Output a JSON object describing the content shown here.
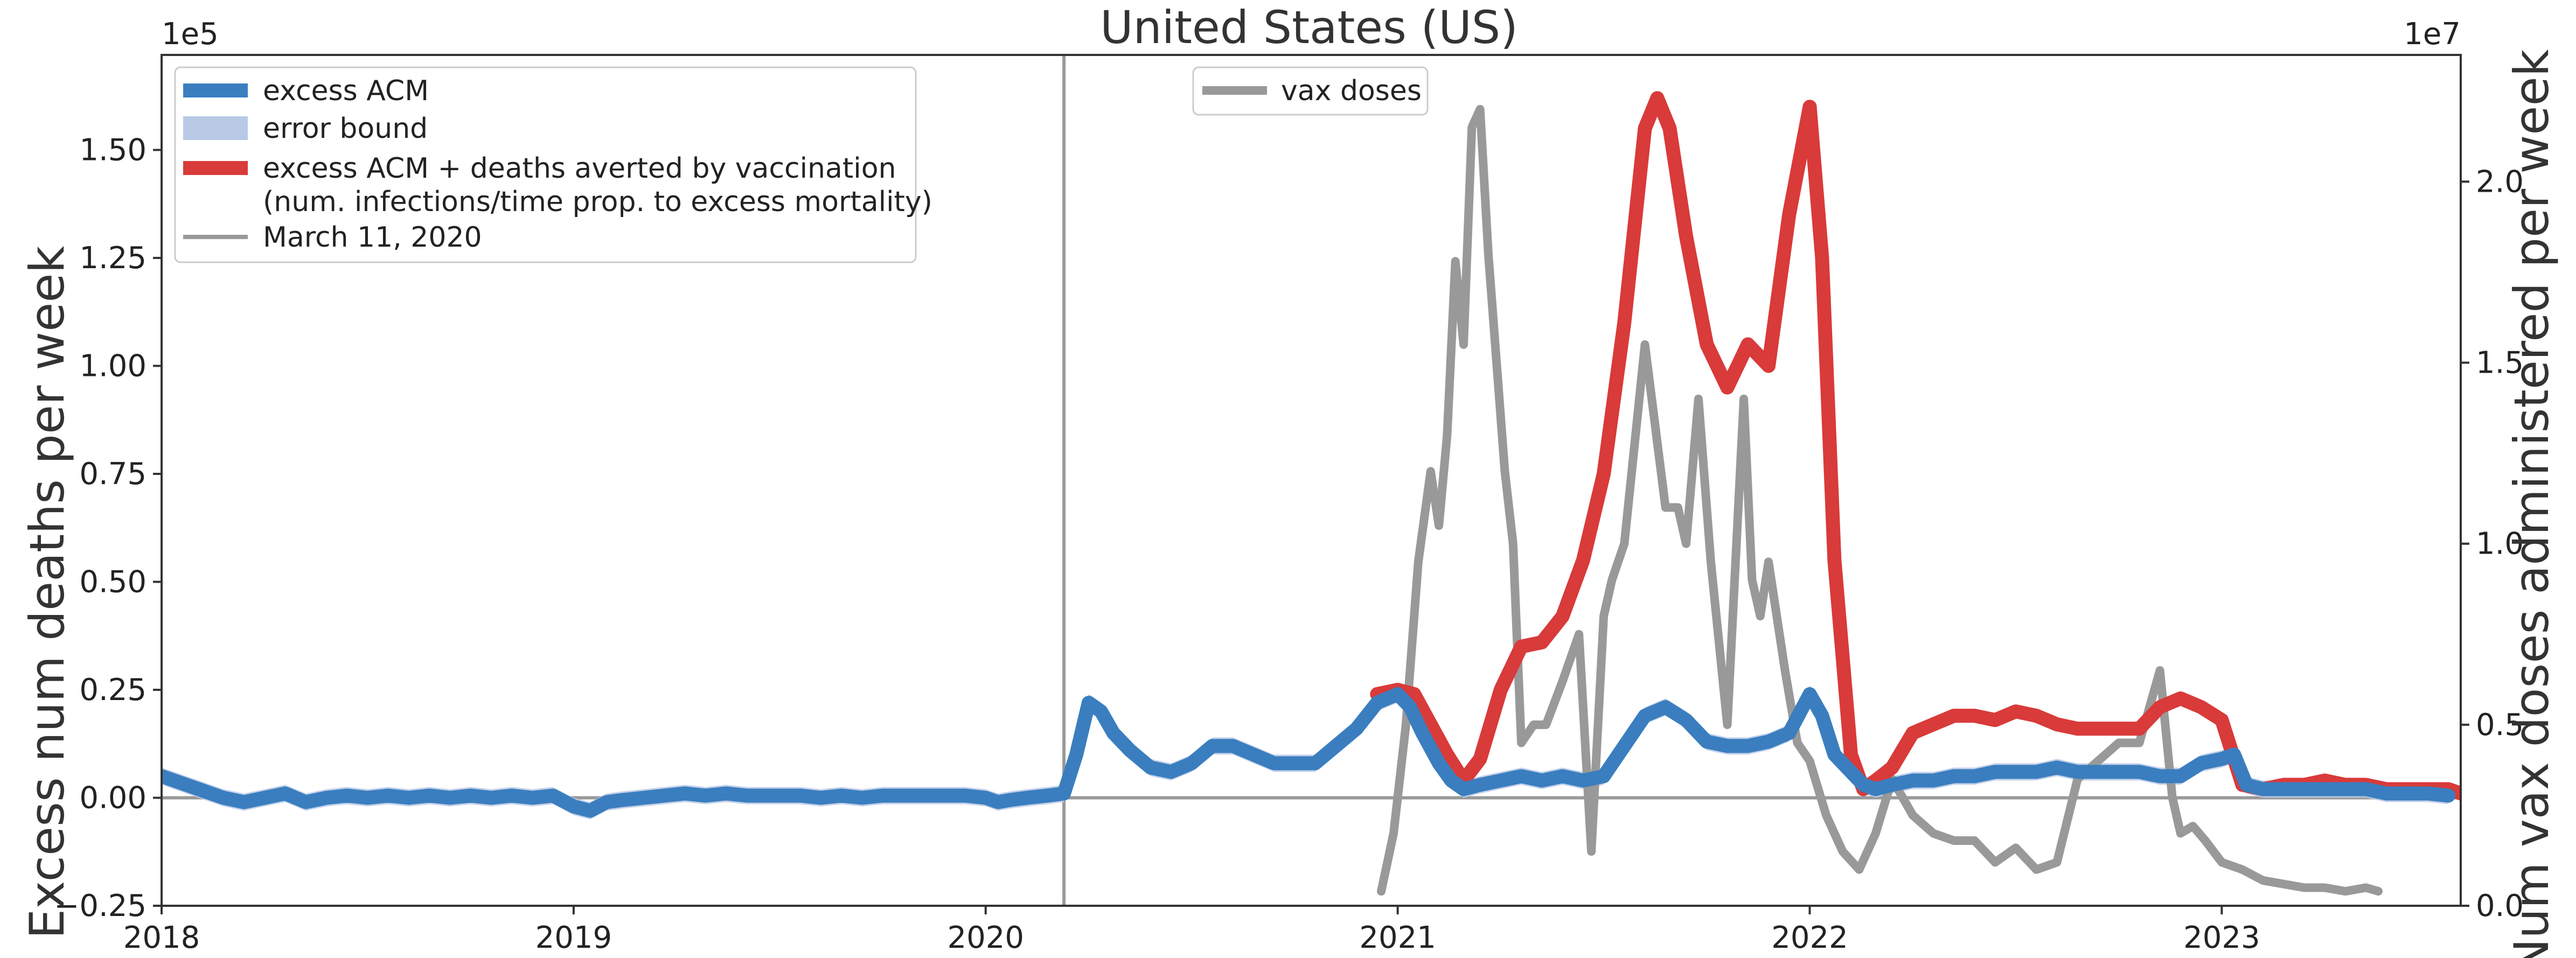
{
  "chart_data": {
    "type": "line",
    "title": "United States (US)",
    "ylabel": "Excess num deaths per week",
    "ylabel_right": "Num vax doses administered per week",
    "y_offset_left": "1e5",
    "y_offset_right": "1e7",
    "xlim": [
      2018.0,
      2023.58
    ],
    "ylim": [
      -0.25,
      1.72
    ],
    "ylim_right": [
      0.0,
      2.35
    ],
    "x_ticks": [
      2018,
      2019,
      2020,
      2021,
      2022,
      2023
    ],
    "x_tick_labels": [
      "2018",
      "2019",
      "2020",
      "2021",
      "2022",
      "2023"
    ],
    "y_ticks": [
      -0.25,
      0.0,
      0.25,
      0.5,
      0.75,
      1.0,
      1.25,
      1.5
    ],
    "y_tick_labels": [
      "−0.25",
      "0.00",
      "0.25",
      "0.50",
      "0.75",
      "1.00",
      "1.25",
      "1.50"
    ],
    "y_ticks_right": [
      0.0,
      0.5,
      1.0,
      1.5,
      2.0
    ],
    "y_tick_labels_right": [
      "0.0",
      "0.5",
      "1.0",
      "1.5",
      "2.0"
    ],
    "grid": false,
    "vline_x": 2020.19,
    "hline_y": 0.0,
    "legend": {
      "placement": "top-left",
      "entries": [
        {
          "label": "excess ACM",
          "color": "#3a7ebf",
          "kind": "line"
        },
        {
          "label": "error bound",
          "color": "#b8c9e6",
          "kind": "patch"
        },
        {
          "label": "excess ACM + deaths averted by vaccination",
          "label2": "(num. infections/time prop. to excess mortality)",
          "color": "#d93a3a",
          "kind": "line"
        },
        {
          "label": "March 11, 2020",
          "color": "#999999",
          "kind": "thin"
        }
      ]
    },
    "legend2": {
      "placement": "top-center",
      "entries": [
        {
          "label": "vax doses",
          "color": "#999999",
          "kind": "line"
        }
      ]
    },
    "series": [
      {
        "name": "excess ACM",
        "color": "#3a7ebf",
        "x": [
          2018.0,
          2018.03,
          2018.06,
          2018.09,
          2018.12,
          2018.15,
          2018.2,
          2018.25,
          2018.3,
          2018.35,
          2018.4,
          2018.45,
          2018.5,
          2018.55,
          2018.6,
          2018.65,
          2018.7,
          2018.75,
          2018.8,
          2018.85,
          2018.9,
          2018.95,
          2019.0,
          2019.04,
          2019.08,
          2019.12,
          2019.17,
          2019.22,
          2019.27,
          2019.32,
          2019.37,
          2019.42,
          2019.5,
          2019.55,
          2019.6,
          2019.65,
          2019.7,
          2019.75,
          2019.8,
          2019.85,
          2019.9,
          2019.95,
          2020.0,
          2020.03,
          2020.06,
          2020.1,
          2020.15,
          2020.19,
          2020.22,
          2020.25,
          2020.28,
          2020.31,
          2020.35,
          2020.4,
          2020.45,
          2020.5,
          2020.55,
          2020.6,
          2020.65,
          2020.7,
          2020.75,
          2020.8,
          2020.85,
          2020.9,
          2020.95,
          2021.0,
          2021.03,
          2021.06,
          2021.1,
          2021.13,
          2021.16,
          2021.2,
          2021.25,
          2021.3,
          2021.35,
          2021.4,
          2021.45,
          2021.5,
          2021.55,
          2021.6,
          2021.65,
          2021.7,
          2021.75,
          2021.8,
          2021.85,
          2021.9,
          2021.95,
          2022.0,
          2022.03,
          2022.06,
          2022.1,
          2022.13,
          2022.16,
          2022.2,
          2022.25,
          2022.3,
          2022.35,
          2022.4,
          2022.45,
          2022.5,
          2022.55,
          2022.6,
          2022.65,
          2022.7,
          2022.75,
          2022.8,
          2022.85,
          2022.9,
          2022.95,
          2023.0,
          2023.03,
          2023.06,
          2023.1,
          2023.15,
          2023.2,
          2023.25,
          2023.3,
          2023.35,
          2023.4,
          2023.45,
          2023.5,
          2023.55
        ],
        "values": [
          0.05,
          0.04,
          0.03,
          0.02,
          0.01,
          0.0,
          -0.01,
          0.0,
          0.01,
          -0.01,
          0.0,
          0.005,
          0.0,
          0.005,
          0.0,
          0.005,
          0.0,
          0.005,
          0.0,
          0.005,
          0.0,
          0.005,
          -0.02,
          -0.03,
          -0.01,
          -0.005,
          0.0,
          0.005,
          0.01,
          0.005,
          0.01,
          0.005,
          0.005,
          0.005,
          0.0,
          0.005,
          0.0,
          0.005,
          0.005,
          0.005,
          0.005,
          0.005,
          0.0,
          -0.01,
          -0.005,
          0.0,
          0.005,
          0.01,
          0.1,
          0.22,
          0.2,
          0.15,
          0.11,
          0.07,
          0.06,
          0.08,
          0.12,
          0.12,
          0.1,
          0.08,
          0.08,
          0.08,
          0.12,
          0.16,
          0.22,
          0.24,
          0.21,
          0.15,
          0.08,
          0.04,
          0.02,
          0.03,
          0.04,
          0.05,
          0.04,
          0.05,
          0.04,
          0.05,
          0.12,
          0.19,
          0.21,
          0.18,
          0.13,
          0.12,
          0.12,
          0.13,
          0.15,
          0.24,
          0.19,
          0.1,
          0.06,
          0.03,
          0.02,
          0.03,
          0.04,
          0.04,
          0.05,
          0.05,
          0.06,
          0.06,
          0.06,
          0.07,
          0.06,
          0.06,
          0.06,
          0.06,
          0.05,
          0.05,
          0.08,
          0.09,
          0.1,
          0.03,
          0.02,
          0.02,
          0.02,
          0.02,
          0.02,
          0.02,
          0.01,
          0.01,
          0.01,
          0.005
        ]
      },
      {
        "name": "excess ACM + deaths averted by vaccination",
        "color": "#d93a3a",
        "x": [
          2020.95,
          2021.0,
          2021.04,
          2021.08,
          2021.12,
          2021.16,
          2021.2,
          2021.25,
          2021.3,
          2021.35,
          2021.4,
          2021.45,
          2021.5,
          2021.55,
          2021.6,
          2021.63,
          2021.66,
          2021.7,
          2021.75,
          2021.8,
          2021.85,
          2021.9,
          2021.95,
          2022.0,
          2022.03,
          2022.06,
          2022.1,
          2022.13,
          2022.16,
          2022.2,
          2022.25,
          2022.3,
          2022.35,
          2022.4,
          2022.45,
          2022.5,
          2022.55,
          2022.6,
          2022.65,
          2022.7,
          2022.75,
          2022.8,
          2022.85,
          2022.9,
          2022.95,
          2023.0,
          2023.05,
          2023.1,
          2023.15,
          2023.2,
          2023.25,
          2023.3,
          2023.35,
          2023.4,
          2023.45,
          2023.5,
          2023.55,
          2023.58
        ],
        "values": [
          0.24,
          0.25,
          0.24,
          0.17,
          0.1,
          0.04,
          0.09,
          0.25,
          0.35,
          0.36,
          0.42,
          0.55,
          0.75,
          1.1,
          1.55,
          1.62,
          1.55,
          1.3,
          1.05,
          0.95,
          1.05,
          1.0,
          1.35,
          1.6,
          1.25,
          0.55,
          0.1,
          0.02,
          0.04,
          0.07,
          0.15,
          0.17,
          0.19,
          0.19,
          0.18,
          0.2,
          0.19,
          0.17,
          0.16,
          0.16,
          0.16,
          0.16,
          0.21,
          0.23,
          0.21,
          0.18,
          0.03,
          0.02,
          0.03,
          0.03,
          0.04,
          0.03,
          0.03,
          0.02,
          0.02,
          0.02,
          0.02,
          0.01
        ]
      },
      {
        "name": "vax doses",
        "color": "#999999",
        "axis": "right",
        "x": [
          2020.96,
          2020.99,
          2021.02,
          2021.05,
          2021.08,
          2021.1,
          2021.12,
          2021.14,
          2021.16,
          2021.18,
          2021.2,
          2021.22,
          2021.24,
          2021.26,
          2021.28,
          2021.3,
          2021.33,
          2021.36,
          2021.4,
          2021.44,
          2021.47,
          2021.5,
          2021.52,
          2021.55,
          2021.6,
          2021.65,
          2021.68,
          2021.7,
          2021.73,
          2021.76,
          2021.8,
          2021.84,
          2021.86,
          2021.88,
          2021.9,
          2021.94,
          2021.97,
          2022.0,
          2022.04,
          2022.08,
          2022.12,
          2022.16,
          2022.2,
          2022.25,
          2022.3,
          2022.35,
          2022.4,
          2022.45,
          2022.5,
          2022.55,
          2022.6,
          2022.65,
          2022.7,
          2022.75,
          2022.8,
          2022.85,
          2022.88,
          2022.9,
          2022.93,
          2022.96,
          2023.0,
          2023.05,
          2023.1,
          2023.15,
          2023.2,
          2023.25,
          2023.3,
          2023.35,
          2023.38
        ],
        "values": [
          0.04,
          0.2,
          0.5,
          0.95,
          1.2,
          1.05,
          1.3,
          1.78,
          1.55,
          2.15,
          2.2,
          1.8,
          1.5,
          1.2,
          1.0,
          0.45,
          0.5,
          0.5,
          0.62,
          0.75,
          0.15,
          0.8,
          0.9,
          1.0,
          1.55,
          1.1,
          1.1,
          1.0,
          1.4,
          0.95,
          0.5,
          1.4,
          0.9,
          0.8,
          0.95,
          0.65,
          0.45,
          0.4,
          0.25,
          0.15,
          0.1,
          0.2,
          0.35,
          0.25,
          0.2,
          0.18,
          0.18,
          0.12,
          0.16,
          0.1,
          0.12,
          0.35,
          0.4,
          0.45,
          0.45,
          0.65,
          0.3,
          0.2,
          0.22,
          0.18,
          0.12,
          0.1,
          0.07,
          0.06,
          0.05,
          0.05,
          0.04,
          0.05,
          0.04
        ]
      }
    ]
  }
}
